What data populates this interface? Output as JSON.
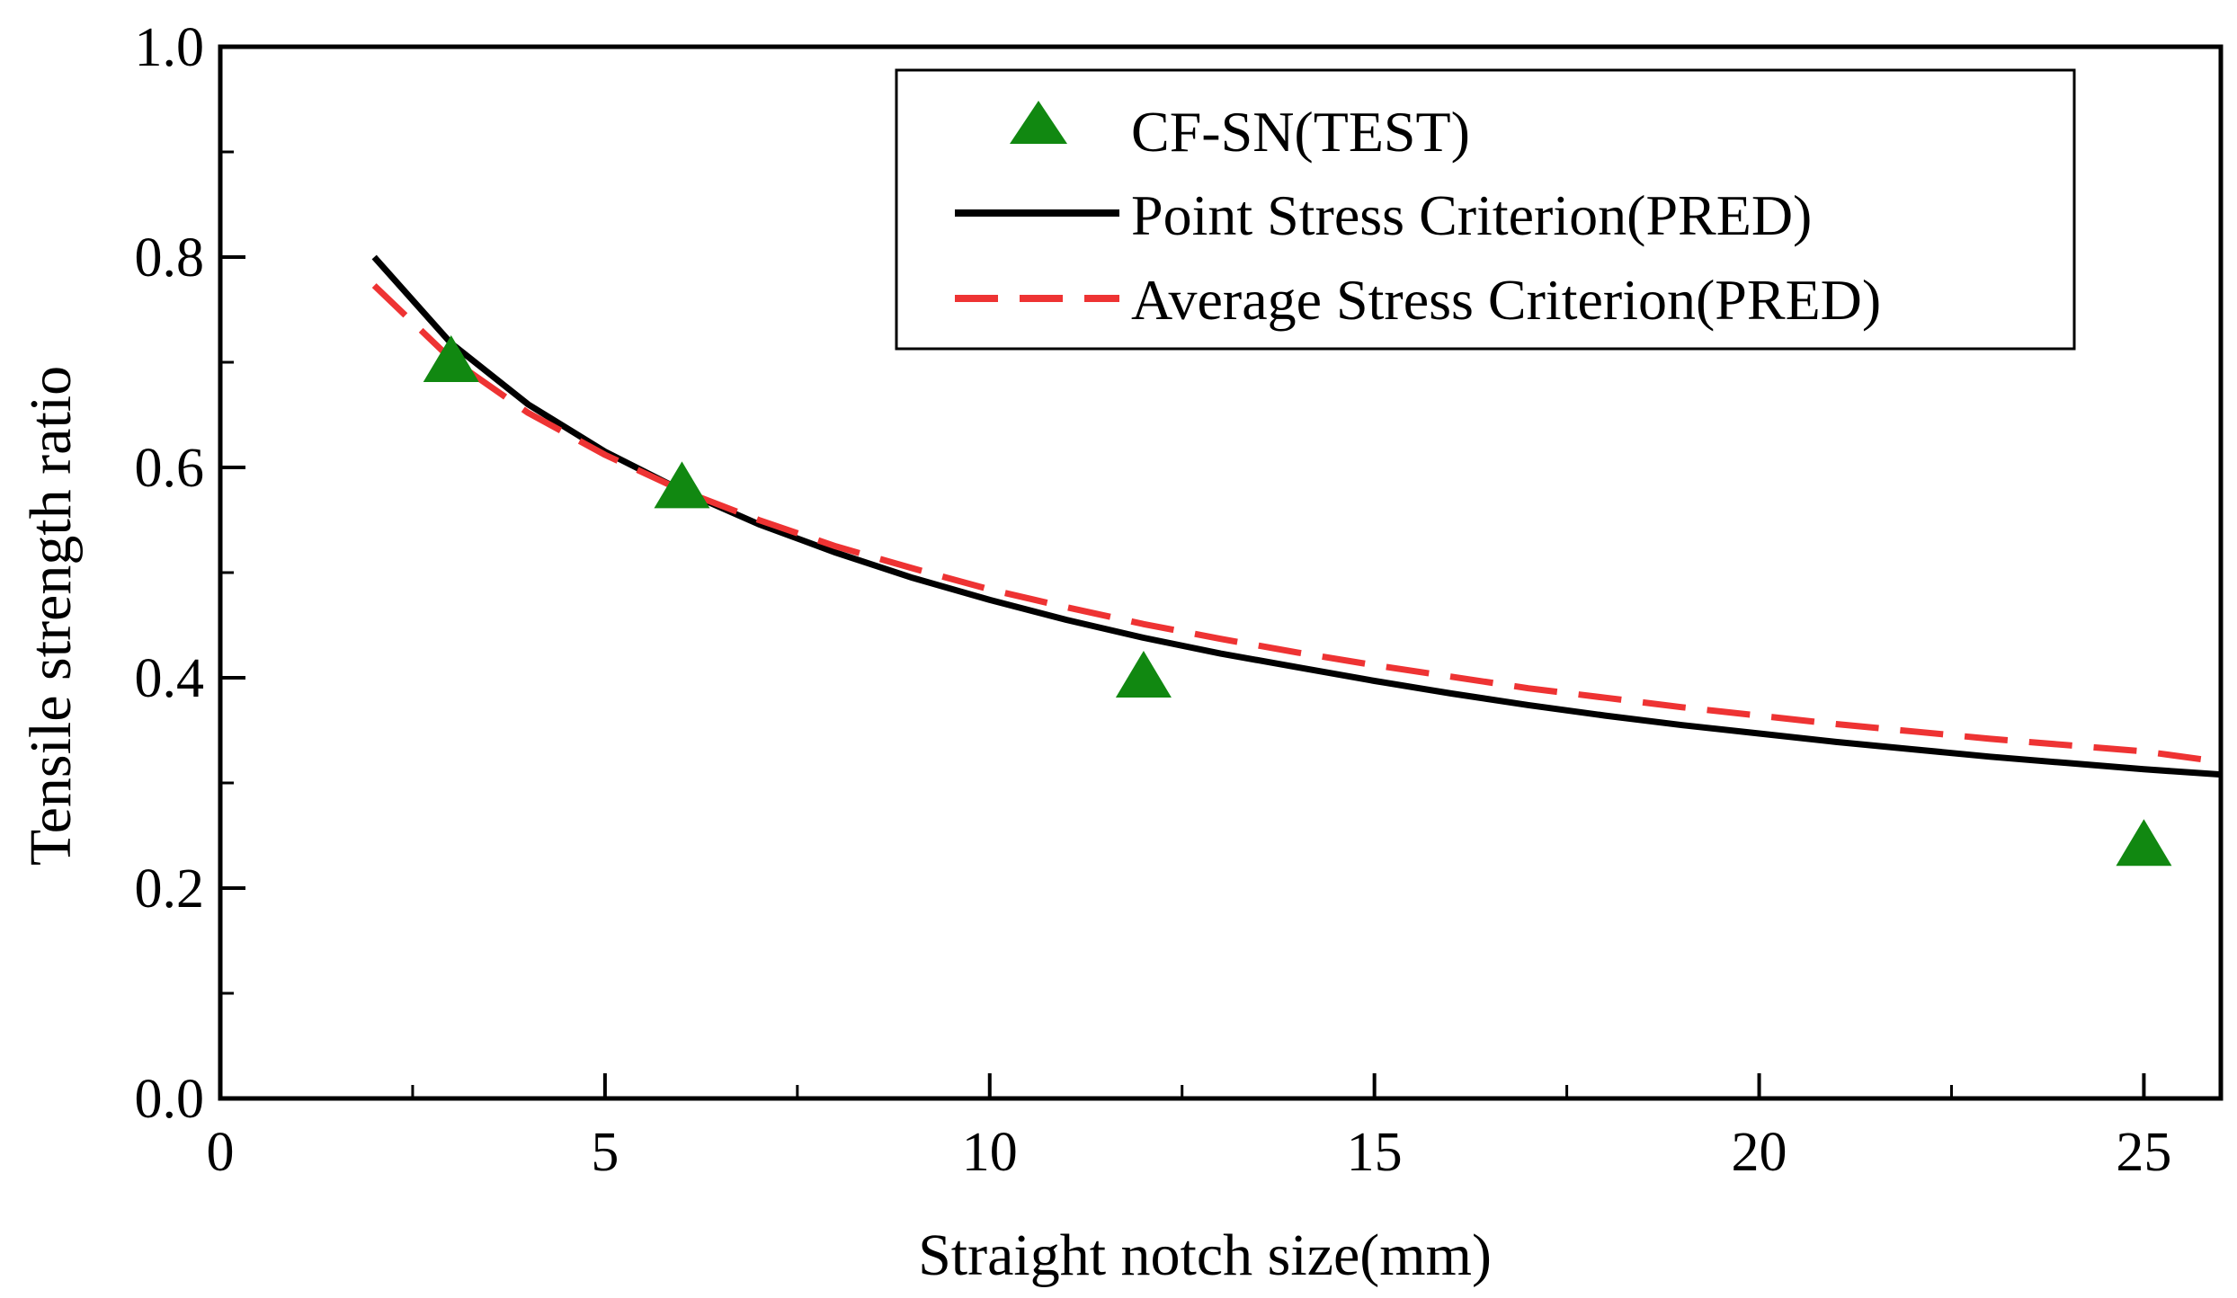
{
  "chart_data": {
    "type": "line",
    "title": "",
    "xlabel": "Straight notch size(mm)",
    "ylabel": "Tensile strength ratio",
    "xlim": [
      0,
      26
    ],
    "ylim": [
      0.0,
      1.0
    ],
    "xticks": [
      0,
      5,
      10,
      15,
      20,
      25
    ],
    "xtick_labels": [
      "0",
      "5",
      "10",
      "15",
      "20",
      "25"
    ],
    "yticks": [
      0.0,
      0.2,
      0.4,
      0.6,
      0.8,
      1.0
    ],
    "ytick_labels": [
      "0.0",
      "0.2",
      "0.4",
      "0.6",
      "0.8",
      "1.0"
    ],
    "grid": false,
    "legend_position": "top-right",
    "series": [
      {
        "name": "CF-SN(TEST)",
        "kind": "scatter",
        "marker": "triangle",
        "color": "#118811",
        "x": [
          3,
          6,
          12,
          25
        ],
        "y": [
          0.7,
          0.58,
          0.4,
          0.24
        ]
      },
      {
        "name": "Point Stress Criterion(PRED)",
        "kind": "line",
        "style": "solid",
        "color": "#000000",
        "x": [
          2,
          3,
          4,
          5,
          6,
          7,
          8,
          9,
          10,
          11,
          12,
          13,
          14,
          15,
          16,
          17,
          18,
          19,
          20,
          21,
          22,
          23,
          24,
          25,
          26
        ],
        "y": [
          0.8,
          0.718,
          0.66,
          0.615,
          0.578,
          0.546,
          0.519,
          0.495,
          0.474,
          0.455,
          0.438,
          0.423,
          0.41,
          0.397,
          0.385,
          0.374,
          0.364,
          0.355,
          0.347,
          0.339,
          0.332,
          0.325,
          0.319,
          0.313,
          0.308
        ]
      },
      {
        "name": "Average Stress Criterion(PRED)",
        "kind": "line",
        "style": "dashed",
        "color": "#ee3333",
        "x": [
          2,
          3,
          4,
          5,
          6,
          7,
          8,
          9,
          10,
          11,
          12,
          13,
          14,
          15,
          16,
          17,
          18,
          19,
          20,
          21,
          22,
          23,
          24,
          25,
          26
        ],
        "y": [
          0.773,
          0.703,
          0.652,
          0.612,
          0.578,
          0.55,
          0.525,
          0.504,
          0.484,
          0.467,
          0.451,
          0.437,
          0.424,
          0.412,
          0.401,
          0.39,
          0.381,
          0.372,
          0.364,
          0.356,
          0.349,
          0.342,
          0.336,
          0.33,
          0.32
        ]
      }
    ]
  }
}
